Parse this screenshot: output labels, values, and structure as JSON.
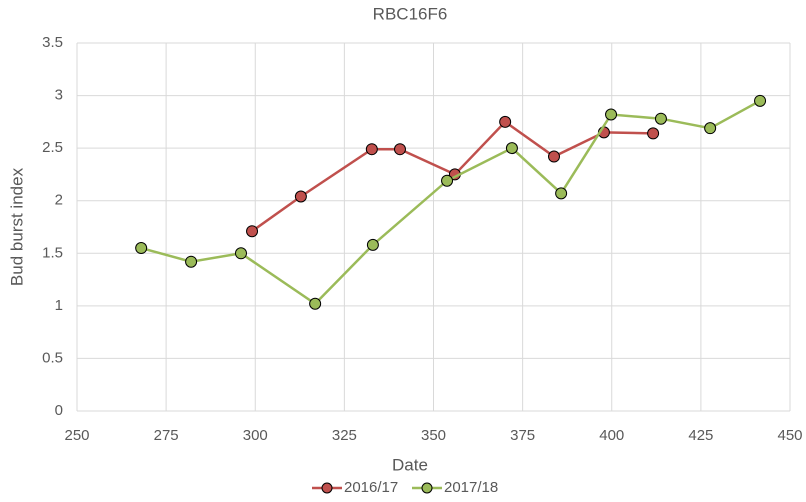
{
  "chart_data": {
    "type": "line",
    "title": "RBC16F6",
    "x_label": "Date",
    "y_label": "Bud burst index",
    "xlim": [
      250,
      450
    ],
    "xticks": [
      250,
      275,
      300,
      325,
      350,
      375,
      400,
      425,
      450
    ],
    "ylim": [
      0,
      3.5
    ],
    "yticks": [
      0,
      0.5,
      1,
      1.5,
      2,
      2.5,
      3,
      3.5
    ],
    "grid": true,
    "legend": "bottom",
    "series": [
      {
        "name": "2016/17",
        "color": "#c0504d",
        "x": [
          299.1,
          312.8,
          332.7,
          340.6,
          356.0,
          370.1,
          383.8,
          397.8,
          411.6
        ],
        "values": [
          1.71,
          2.04,
          2.49,
          2.49,
          2.25,
          2.75,
          2.42,
          2.65,
          2.64
        ]
      },
      {
        "name": "2017/18",
        "color": "#9bbb59",
        "x": [
          268.0,
          282.0,
          296.0,
          316.8,
          333.0,
          353.8,
          372.0,
          385.8,
          399.8,
          413.8,
          427.6,
          441.6
        ],
        "values": [
          1.55,
          1.42,
          1.5,
          1.02,
          1.58,
          2.19,
          2.5,
          2.07,
          2.82,
          2.78,
          2.69,
          2.95
        ]
      }
    ]
  }
}
